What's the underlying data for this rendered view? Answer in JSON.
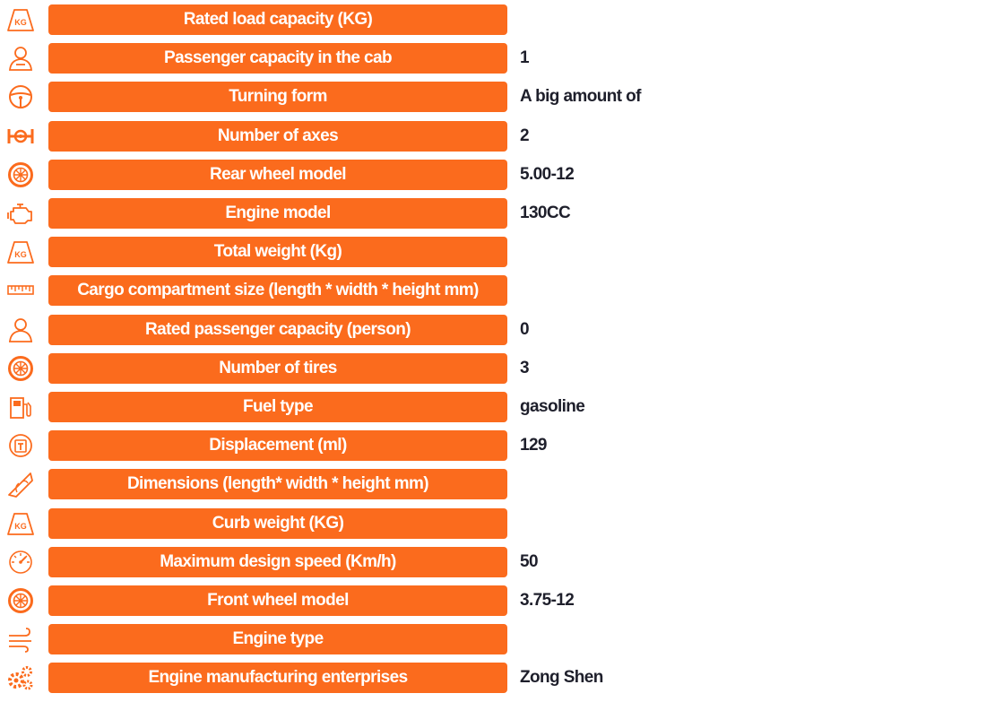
{
  "accent_color": "#fb6b1d",
  "icon_color": "#fb6b1d",
  "rows": [
    {
      "icon": "kg-weight-icon",
      "label": "Rated load capacity (KG)",
      "value": ""
    },
    {
      "icon": "passenger-icon",
      "label": "Passenger capacity in the cab",
      "value": "1"
    },
    {
      "icon": "steering-wheel-icon",
      "label": "Turning form",
      "value": "A big amount of"
    },
    {
      "icon": "axle-icon",
      "label": "Number of axes",
      "value": "2"
    },
    {
      "icon": "wheel-icon",
      "label": "Rear wheel model",
      "value": "5.00-12"
    },
    {
      "icon": "engine-icon",
      "label": "Engine model",
      "value": "130CC"
    },
    {
      "icon": "kg-weight-icon",
      "label": "Total weight (Kg)",
      "value": ""
    },
    {
      "icon": "ruler-icon",
      "label": "Cargo compartment size (length * width * height mm)",
      "value": ""
    },
    {
      "icon": "person-icon",
      "label": "Rated passenger capacity (person)",
      "value": "0"
    },
    {
      "icon": "wheel-icon",
      "label": "Number of tires",
      "value": "3"
    },
    {
      "icon": "fuel-pump-icon",
      "label": "Fuel type",
      "value": "gasoline"
    },
    {
      "icon": "displacement-icon",
      "label": "Displacement (ml)",
      "value": "129"
    },
    {
      "icon": "protractor-icon",
      "label": "Dimensions (length* width * height mm)",
      "value": ""
    },
    {
      "icon": "kg-weight-icon",
      "label": "Curb weight (KG)",
      "value": ""
    },
    {
      "icon": "speedometer-icon",
      "label": "Maximum design speed (Km/h)",
      "value": "50"
    },
    {
      "icon": "wheel-icon",
      "label": "Front wheel model",
      "value": "3.75-12"
    },
    {
      "icon": "wind-icon",
      "label": "Engine type",
      "value": ""
    },
    {
      "icon": "gears-icon",
      "label": "Engine manufacturing enterprises",
      "value": "Zong Shen"
    }
  ]
}
